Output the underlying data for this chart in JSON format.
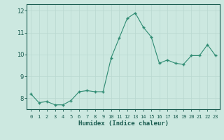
{
  "x": [
    0,
    1,
    2,
    3,
    4,
    5,
    6,
    7,
    8,
    9,
    10,
    11,
    12,
    13,
    14,
    15,
    16,
    17,
    18,
    19,
    20,
    21,
    22,
    23
  ],
  "y": [
    8.2,
    7.8,
    7.85,
    7.7,
    7.7,
    7.9,
    8.3,
    8.35,
    8.3,
    8.3,
    9.85,
    10.75,
    11.65,
    11.9,
    11.25,
    10.8,
    9.6,
    9.75,
    9.6,
    9.55,
    9.95,
    9.95,
    10.45,
    9.95
  ],
  "line_color": "#2e8b72",
  "marker_color": "#2e8b72",
  "bg_color": "#cce8e0",
  "grid_color": "#b8d8d0",
  "axis_color": "#1a5c50",
  "xlabel": "Humidex (Indice chaleur)",
  "ylim": [
    7.5,
    12.3
  ],
  "xlim": [
    -0.5,
    23.5
  ],
  "yticks": [
    8,
    9,
    10,
    11,
    12
  ],
  "xtick_labels": [
    "0",
    "1",
    "2",
    "3",
    "4",
    "5",
    "6",
    "7",
    "8",
    "9",
    "10",
    "11",
    "12",
    "13",
    "14",
    "15",
    "16",
    "17",
    "18",
    "19",
    "20",
    "21",
    "22",
    "23"
  ]
}
